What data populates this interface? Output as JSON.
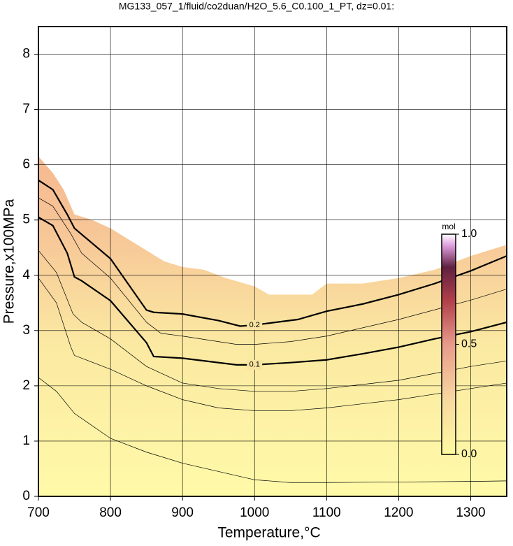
{
  "chart_data": {
    "type": "contour",
    "title": "MG133_057_1/fluid/co2duan/H2O_5.6_C0.100_1_PT, dz=0.01:",
    "x_label": "Temperature,°C",
    "y_label": "Pressure,x100MPa",
    "xlim": [
      700,
      1350
    ],
    "xticks": [
      700,
      800,
      900,
      1000,
      1100,
      1200,
      1300
    ],
    "ylim": [
      0,
      8.5
    ],
    "yticks": [
      0,
      1,
      2,
      3,
      4,
      5,
      6,
      7,
      8
    ],
    "grid": true,
    "field": {
      "x": [
        700,
        710,
        720,
        735,
        750,
        775,
        800,
        825,
        850,
        875,
        900,
        930,
        960,
        1000,
        1020,
        1050,
        1080,
        1100,
        1150,
        1200,
        1250,
        1300,
        1350
      ],
      "y": [
        6.15,
        6.0,
        5.85,
        5.55,
        5.1,
        5.0,
        4.85,
        4.65,
        4.45,
        4.25,
        4.15,
        4.1,
        3.95,
        3.8,
        3.65,
        3.65,
        3.65,
        3.85,
        3.85,
        3.95,
        4.1,
        4.35,
        4.55
      ]
    },
    "contours": [
      {
        "level": 0.01,
        "x": [
          700,
          725,
          750,
          800,
          850,
          900,
          950,
          1000,
          1050,
          1100,
          1200,
          1300,
          1350
        ],
        "y": [
          2.15,
          1.9,
          1.5,
          1.05,
          0.8,
          0.6,
          0.45,
          0.3,
          0.25,
          0.25,
          0.26,
          0.27,
          0.28
        ]
      },
      {
        "level": 0.03,
        "x": [
          700,
          725,
          745,
          750,
          800,
          850,
          900,
          950,
          1000,
          1050,
          1100,
          1200,
          1300,
          1350
        ],
        "y": [
          3.95,
          3.5,
          2.7,
          2.55,
          2.3,
          2.0,
          1.75,
          1.6,
          1.55,
          1.55,
          1.6,
          1.75,
          1.95,
          2.05
        ]
      },
      {
        "level": 0.05,
        "x": [
          700,
          725,
          748,
          760,
          800,
          850,
          900,
          950,
          1000,
          1050,
          1100,
          1200,
          1300,
          1350
        ],
        "y": [
          4.45,
          4.05,
          3.3,
          3.15,
          2.85,
          2.35,
          2.05,
          1.95,
          1.9,
          1.9,
          1.95,
          2.1,
          2.35,
          2.45
        ]
      },
      {
        "level": 0.1,
        "label": "0.1",
        "x": [
          700,
          720,
          740,
          750,
          760,
          800,
          850,
          860,
          900,
          975,
          1000,
          1050,
          1100,
          1150,
          1200,
          1250,
          1300,
          1350
        ],
        "y": [
          5.05,
          4.9,
          4.4,
          3.97,
          3.9,
          3.54,
          2.78,
          2.53,
          2.5,
          2.38,
          2.38,
          2.42,
          2.47,
          2.58,
          2.7,
          2.85,
          2.98,
          3.15
        ]
      },
      {
        "level": 0.15,
        "x": [
          700,
          720,
          745,
          760,
          800,
          850,
          870,
          900,
          975,
          1000,
          1050,
          1100,
          1200,
          1300,
          1350
        ],
        "y": [
          5.4,
          5.25,
          4.75,
          4.4,
          3.95,
          3.15,
          2.95,
          2.9,
          2.75,
          2.75,
          2.8,
          2.9,
          3.2,
          3.55,
          3.75
        ]
      },
      {
        "level": 0.2,
        "label": "0.2",
        "x": [
          700,
          720,
          740,
          750,
          800,
          850,
          860,
          900,
          950,
          980,
          1000,
          1060,
          1100,
          1150,
          1200,
          1250,
          1300,
          1350
        ],
        "y": [
          5.72,
          5.55,
          5.1,
          4.85,
          4.3,
          3.37,
          3.33,
          3.3,
          3.18,
          3.08,
          3.1,
          3.2,
          3.35,
          3.48,
          3.65,
          3.85,
          4.08,
          4.35
        ]
      }
    ],
    "colorbar": {
      "label": "mol",
      "lim": [
        0,
        1
      ],
      "ticks": [
        {
          "value": 0,
          "label": "0.0"
        },
        {
          "value": 0.5,
          "label": "0.5"
        },
        {
          "value": 1,
          "label": "1.0"
        }
      ]
    }
  }
}
